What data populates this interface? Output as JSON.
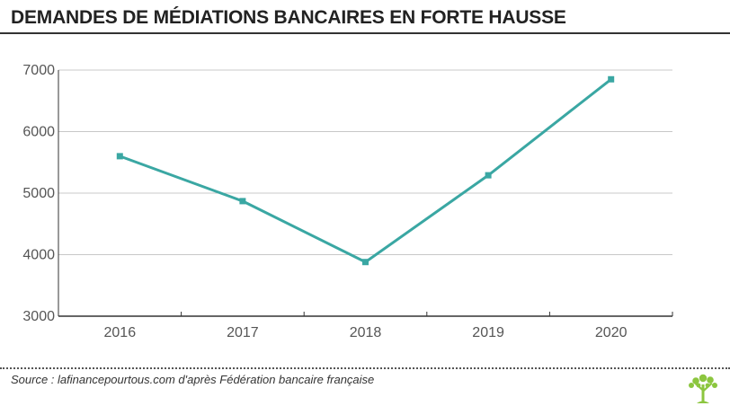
{
  "header": {
    "title": "DEMANDES DE MÉDIATIONS BANCAIRES EN FORTE HAUSSE"
  },
  "footer": {
    "source": "Source : lafinancepourtous.com d'après Fédération bancaire française",
    "logo_icon": "tree-logo-icon"
  },
  "colors": {
    "line": "#3aa7a3",
    "grid": "#c8c8c8",
    "axis": "#333333",
    "logo": "#8cc63f"
  },
  "chart_data": {
    "type": "line",
    "title": "DEMANDES DE MÉDIATIONS BANCAIRES EN FORTE HAUSSE",
    "xlabel": "",
    "ylabel": "",
    "categories": [
      "2016",
      "2017",
      "2018",
      "2019",
      "2020"
    ],
    "series": [
      {
        "values": [
          5600,
          4870,
          3880,
          5290,
          6850
        ]
      }
    ],
    "ylim": [
      3000,
      7000
    ],
    "yticks": [
      3000,
      4000,
      5000,
      6000,
      7000
    ],
    "grid": true,
    "legend": "none"
  }
}
